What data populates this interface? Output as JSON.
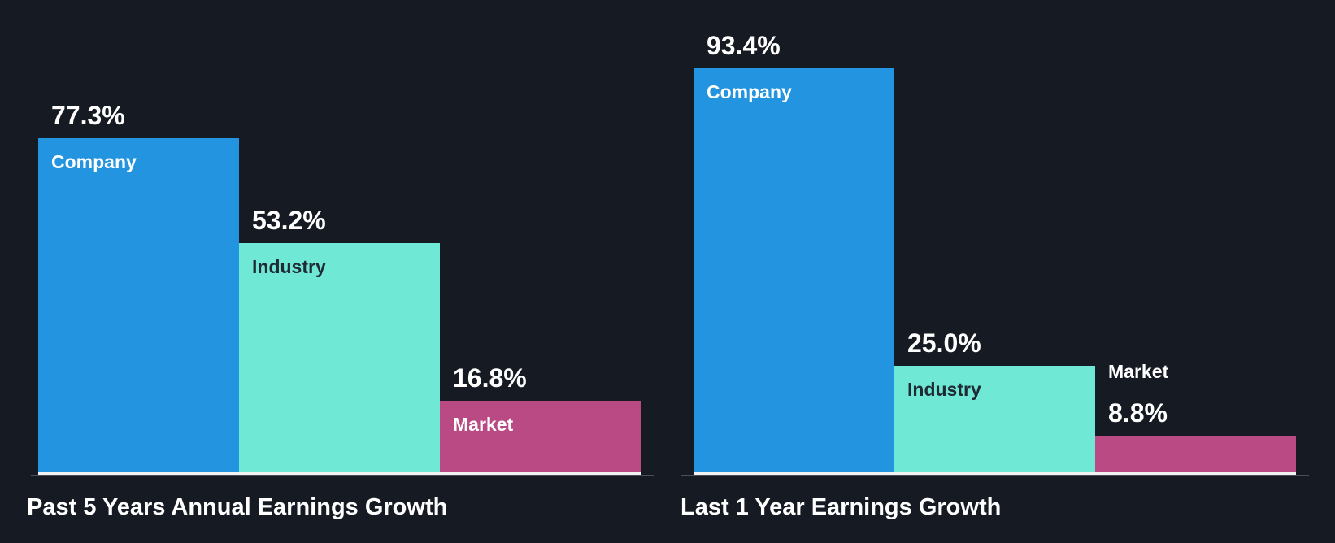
{
  "chart_data": [
    {
      "type": "bar",
      "title": "Past 5 Years Annual Earnings Growth",
      "categories": [
        "Company",
        "Industry",
        "Market"
      ],
      "values": [
        77.3,
        53.2,
        16.8
      ],
      "labels": [
        "77.3%",
        "53.2%",
        "16.8%"
      ],
      "colors": [
        "#2394df",
        "#6fe8d6",
        "#b94a83"
      ],
      "ylim": [
        0,
        100
      ]
    },
    {
      "type": "bar",
      "title": "Last 1 Year Earnings Growth",
      "categories": [
        "Company",
        "Industry",
        "Market"
      ],
      "values": [
        93.4,
        25.0,
        8.8
      ],
      "labels": [
        "93.4%",
        "25.0%",
        "8.8%"
      ],
      "colors": [
        "#2394df",
        "#6fe8d6",
        "#b94a83"
      ],
      "ylim": [
        0,
        100
      ]
    }
  ]
}
